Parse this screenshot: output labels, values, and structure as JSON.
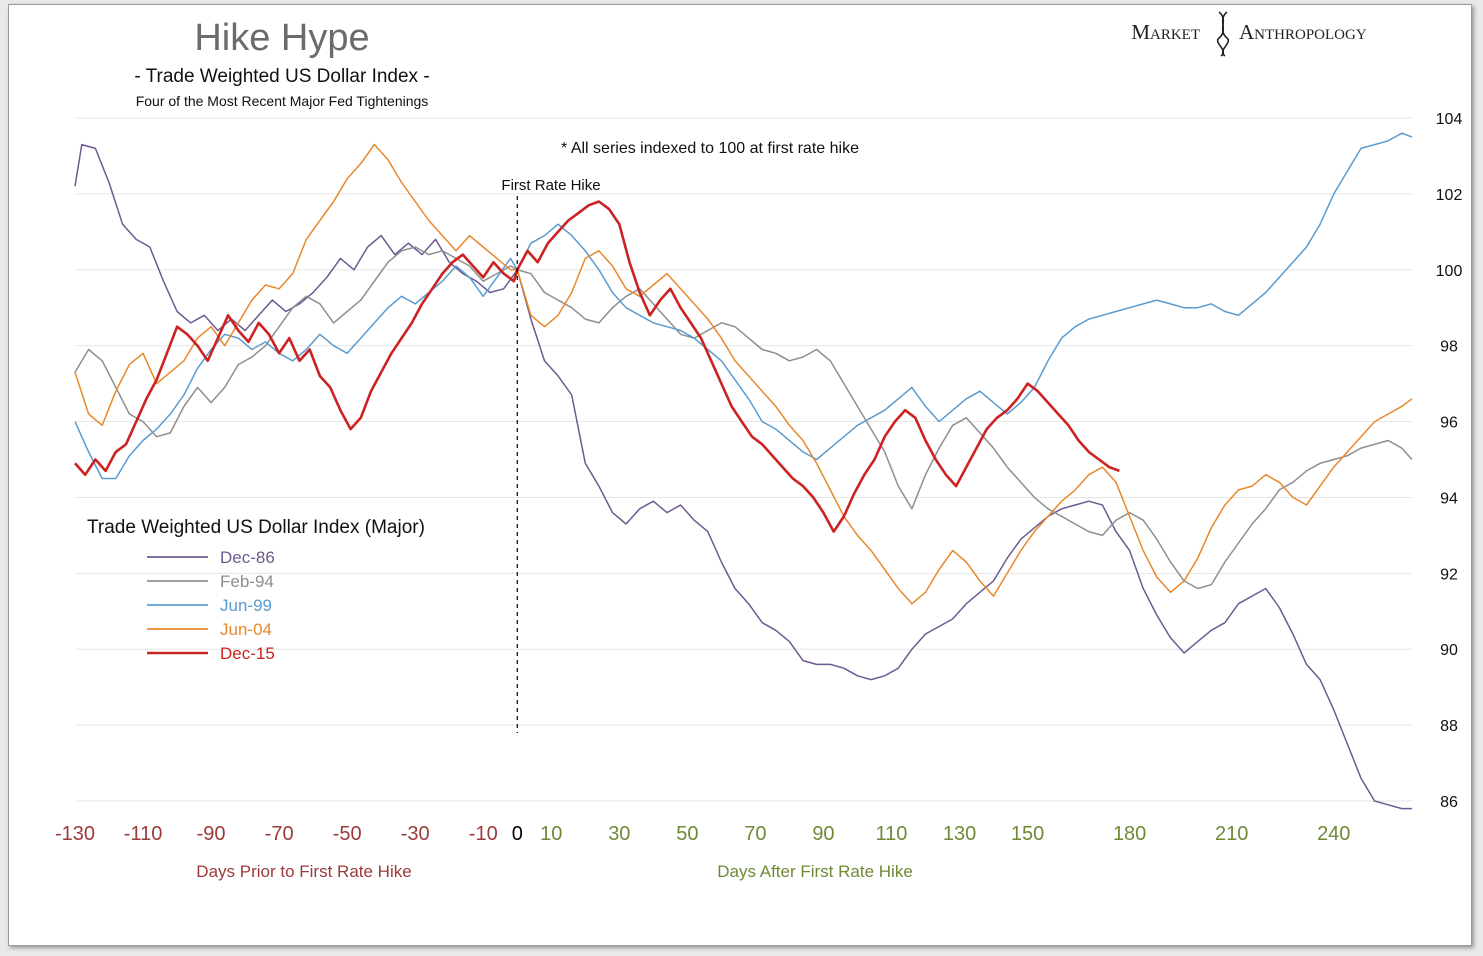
{
  "brand": {
    "left": "Market",
    "right": "Anthropology"
  },
  "chart_data": {
    "type": "line",
    "title": "Hike Hype",
    "subtitle": "- Trade Weighted US Dollar Index -",
    "subtitle2": "Four of the Most Recent Major Fed Tightenings",
    "note": "* All series indexed to 100 at first rate hike",
    "marker_label": "First Rate Hike",
    "legend_title": "Trade Weighted US Dollar Index (Major)",
    "xlabel_left": "Days Prior to First Rate Hike",
    "xlabel_right": "Days After First Rate Hike",
    "x_ticks": [
      "-130",
      "-110",
      "-90",
      "-70",
      "-50",
      "-30",
      "-10",
      "0",
      "10",
      "30",
      "50",
      "70",
      "90",
      "110",
      "130",
      "150",
      "180",
      "210",
      "240"
    ],
    "y_ticks": [
      86,
      88,
      90,
      92,
      94,
      96,
      98,
      100,
      102,
      104
    ],
    "xlim": [
      -130,
      263
    ],
    "ylim": [
      86,
      104
    ],
    "grid": true,
    "legend_position": "left-middle",
    "colors": {
      "prior": "#9b3a3a",
      "after": "#6f8a35",
      "zero": "#000000"
    },
    "series": [
      {
        "name": "Dec-86",
        "color": "#6e5a91",
        "x": [
          -130,
          -128,
          -124,
          -120,
          -116,
          -112,
          -108,
          -104,
          -100,
          -96,
          -92,
          -88,
          -84,
          -80,
          -76,
          -72,
          -68,
          -64,
          -60,
          -56,
          -52,
          -48,
          -44,
          -40,
          -36,
          -32,
          -28,
          -24,
          -20,
          -16,
          -12,
          -8,
          -4,
          0,
          4,
          8,
          12,
          16,
          20,
          24,
          28,
          32,
          36,
          40,
          44,
          48,
          52,
          56,
          60,
          64,
          68,
          72,
          76,
          80,
          84,
          88,
          92,
          96,
          100,
          104,
          108,
          112,
          116,
          120,
          124,
          128,
          132,
          136,
          140,
          144,
          148,
          152,
          156,
          160,
          164,
          168,
          172,
          176,
          180,
          184,
          188,
          192,
          196,
          200,
          204,
          208,
          212,
          216,
          220,
          224,
          228,
          232,
          236,
          240,
          244,
          248,
          252,
          256,
          260,
          263
        ],
        "y": [
          102.2,
          103.3,
          103.2,
          102.3,
          101.2,
          100.8,
          100.6,
          99.7,
          98.9,
          98.6,
          98.8,
          98.4,
          98.7,
          98.4,
          98.8,
          99.2,
          98.9,
          99.1,
          99.4,
          99.8,
          100.3,
          100.0,
          100.6,
          100.9,
          100.4,
          100.7,
          100.4,
          100.8,
          100.2,
          99.9,
          99.7,
          99.4,
          99.5,
          100.0,
          98.7,
          97.6,
          97.2,
          96.7,
          94.9,
          94.3,
          93.6,
          93.3,
          93.7,
          93.9,
          93.6,
          93.8,
          93.4,
          93.1,
          92.3,
          91.6,
          91.2,
          90.7,
          90.5,
          90.2,
          89.7,
          89.6,
          89.6,
          89.5,
          89.3,
          89.2,
          89.3,
          89.5,
          90.0,
          90.4,
          90.6,
          90.8,
          91.2,
          91.5,
          91.8,
          92.4,
          92.9,
          93.2,
          93.5,
          93.7,
          93.8,
          93.9,
          93.8,
          93.1,
          92.6,
          91.6,
          90.9,
          90.3,
          89.9,
          90.2,
          90.5,
          90.7,
          91.2,
          91.4,
          91.6,
          91.1,
          90.4,
          89.6,
          89.2,
          88.4,
          87.5,
          86.6,
          86.0,
          85.9,
          85.8,
          85.8
        ]
      },
      {
        "name": "Feb-94",
        "color": "#8e8e8e",
        "x": [
          -130,
          -126,
          -122,
          -118,
          -114,
          -110,
          -106,
          -102,
          -98,
          -94,
          -90,
          -86,
          -82,
          -78,
          -74,
          -70,
          -66,
          -62,
          -58,
          -54,
          -50,
          -46,
          -42,
          -38,
          -34,
          -30,
          -26,
          -22,
          -18,
          -14,
          -10,
          -6,
          -2,
          0,
          4,
          8,
          12,
          16,
          20,
          24,
          28,
          32,
          36,
          40,
          44,
          48,
          52,
          56,
          60,
          64,
          68,
          72,
          76,
          80,
          84,
          88,
          92,
          96,
          100,
          104,
          108,
          112,
          116,
          120,
          124,
          128,
          132,
          136,
          140,
          144,
          148,
          152,
          156,
          160,
          164,
          168,
          172,
          176,
          180,
          184,
          188,
          192,
          196,
          200,
          204,
          208,
          212,
          216,
          220,
          224,
          228,
          232,
          236,
          240,
          244,
          248,
          252,
          256,
          260,
          263
        ],
        "y": [
          97.3,
          97.9,
          97.6,
          96.9,
          96.2,
          96.0,
          95.6,
          95.7,
          96.4,
          96.9,
          96.5,
          96.9,
          97.5,
          97.7,
          98.0,
          98.5,
          99.0,
          99.3,
          99.1,
          98.6,
          98.9,
          99.2,
          99.7,
          100.2,
          100.5,
          100.6,
          100.4,
          100.5,
          100.3,
          100.1,
          99.7,
          99.9,
          100.1,
          100.0,
          99.9,
          99.4,
          99.2,
          99.0,
          98.7,
          98.6,
          99.0,
          99.3,
          99.5,
          99.1,
          98.7,
          98.3,
          98.2,
          98.4,
          98.6,
          98.5,
          98.2,
          97.9,
          97.8,
          97.6,
          97.7,
          97.9,
          97.6,
          97.0,
          96.4,
          95.8,
          95.2,
          94.3,
          93.7,
          94.6,
          95.3,
          95.9,
          96.1,
          95.7,
          95.3,
          94.8,
          94.4,
          94.0,
          93.7,
          93.5,
          93.3,
          93.1,
          93.0,
          93.4,
          93.6,
          93.4,
          92.9,
          92.3,
          91.8,
          91.6,
          91.7,
          92.3,
          92.8,
          93.3,
          93.7,
          94.2,
          94.4,
          94.7,
          94.9,
          95.0,
          95.1,
          95.3,
          95.4,
          95.5,
          95.3,
          95.0
        ]
      },
      {
        "name": "Jun-99",
        "color": "#5a9bd0",
        "x": [
          -130,
          -126,
          -122,
          -118,
          -114,
          -110,
          -106,
          -102,
          -98,
          -94,
          -90,
          -86,
          -82,
          -78,
          -74,
          -70,
          -66,
          -62,
          -58,
          -54,
          -50,
          -46,
          -42,
          -38,
          -34,
          -30,
          -26,
          -22,
          -18,
          -14,
          -10,
          -6,
          -2,
          0,
          4,
          8,
          12,
          16,
          20,
          24,
          28,
          32,
          36,
          40,
          44,
          48,
          52,
          56,
          60,
          64,
          68,
          72,
          76,
          80,
          84,
          88,
          92,
          96,
          100,
          104,
          108,
          112,
          116,
          120,
          124,
          128,
          132,
          136,
          140,
          144,
          148,
          152,
          156,
          160,
          164,
          168,
          172,
          176,
          180,
          184,
          188,
          192,
          196,
          200,
          204,
          208,
          212,
          216,
          220,
          224,
          228,
          232,
          236,
          240,
          244,
          248,
          252,
          256,
          260,
          263
        ],
        "y": [
          96.0,
          95.2,
          94.5,
          94.5,
          95.1,
          95.5,
          95.8,
          96.2,
          96.7,
          97.4,
          97.9,
          98.3,
          98.2,
          97.9,
          98.1,
          97.8,
          97.6,
          97.9,
          98.3,
          98.0,
          97.8,
          98.2,
          98.6,
          99.0,
          99.3,
          99.1,
          99.4,
          99.7,
          100.1,
          99.8,
          99.3,
          99.8,
          100.3,
          100.0,
          100.7,
          100.9,
          101.2,
          100.9,
          100.5,
          100.0,
          99.4,
          99.0,
          98.8,
          98.6,
          98.5,
          98.4,
          98.2,
          97.9,
          97.6,
          97.1,
          96.6,
          96.0,
          95.8,
          95.5,
          95.2,
          95.0,
          95.3,
          95.6,
          95.9,
          96.1,
          96.3,
          96.6,
          96.9,
          96.4,
          96.0,
          96.3,
          96.6,
          96.8,
          96.5,
          96.2,
          96.5,
          96.9,
          97.6,
          98.2,
          98.5,
          98.7,
          98.8,
          98.9,
          99.0,
          99.1,
          99.2,
          99.1,
          99.0,
          99.0,
          99.1,
          98.9,
          98.8,
          99.1,
          99.4,
          99.8,
          100.2,
          100.6,
          101.2,
          102.0,
          102.6,
          103.2,
          103.3,
          103.4,
          103.6,
          103.5
        ]
      },
      {
        "name": "Jun-04",
        "color": "#e8882b",
        "x": [
          -130,
          -126,
          -122,
          -118,
          -114,
          -110,
          -106,
          -102,
          -98,
          -94,
          -90,
          -86,
          -82,
          -78,
          -74,
          -70,
          -66,
          -62,
          -58,
          -54,
          -50,
          -46,
          -42,
          -38,
          -34,
          -30,
          -26,
          -22,
          -18,
          -14,
          -10,
          -6,
          -2,
          0,
          4,
          8,
          12,
          16,
          20,
          24,
          28,
          32,
          36,
          40,
          44,
          48,
          52,
          56,
          60,
          64,
          68,
          72,
          76,
          80,
          84,
          88,
          92,
          96,
          100,
          104,
          108,
          112,
          116,
          120,
          124,
          128,
          132,
          136,
          140,
          144,
          148,
          152,
          156,
          160,
          164,
          168,
          172,
          176,
          180,
          184,
          188,
          192,
          196,
          200,
          204,
          208,
          212,
          216,
          220,
          224,
          228,
          232,
          236,
          240,
          244,
          248,
          252,
          256,
          260,
          263
        ],
        "y": [
          97.3,
          96.2,
          95.9,
          96.8,
          97.5,
          97.8,
          97.0,
          97.3,
          97.6,
          98.2,
          98.5,
          98.0,
          98.6,
          99.2,
          99.6,
          99.5,
          99.9,
          100.8,
          101.3,
          101.8,
          102.4,
          102.8,
          103.3,
          102.9,
          102.3,
          101.8,
          101.3,
          100.9,
          100.5,
          100.9,
          100.6,
          100.3,
          100.0,
          100.0,
          98.8,
          98.5,
          98.8,
          99.4,
          100.3,
          100.5,
          100.1,
          99.5,
          99.3,
          99.6,
          99.9,
          99.5,
          99.1,
          98.7,
          98.2,
          97.6,
          97.2,
          96.8,
          96.4,
          95.9,
          95.5,
          94.9,
          94.2,
          93.5,
          93.0,
          92.6,
          92.1,
          91.6,
          91.2,
          91.5,
          92.1,
          92.6,
          92.3,
          91.8,
          91.4,
          92.0,
          92.6,
          93.1,
          93.5,
          93.9,
          94.2,
          94.6,
          94.8,
          94.4,
          93.5,
          92.6,
          91.9,
          91.5,
          91.8,
          92.4,
          93.2,
          93.8,
          94.2,
          94.3,
          94.6,
          94.4,
          94.0,
          93.8,
          94.3,
          94.8,
          95.2,
          95.6,
          96.0,
          96.2,
          96.4,
          96.6
        ]
      },
      {
        "name": "Dec-15",
        "color": "#cc2222",
        "x": [
          -130,
          -127,
          -124,
          -121,
          -118,
          -115,
          -112,
          -109,
          -106,
          -103,
          -100,
          -97,
          -94,
          -91,
          -88,
          -85,
          -82,
          -79,
          -76,
          -73,
          -70,
          -67,
          -64,
          -61,
          -58,
          -55,
          -52,
          -49,
          -46,
          -43,
          -40,
          -37,
          -34,
          -31,
          -28,
          -25,
          -22,
          -19,
          -16,
          -13,
          -10,
          -7,
          -4,
          -1,
          0,
          3,
          6,
          9,
          12,
          15,
          18,
          21,
          24,
          27,
          30,
          33,
          36,
          39,
          42,
          45,
          48,
          51,
          54,
          57,
          60,
          63,
          66,
          69,
          72,
          75,
          78,
          81,
          84,
          87,
          90,
          93,
          96,
          99,
          102,
          105,
          108,
          111,
          114,
          117,
          120,
          123,
          126,
          129,
          132,
          135,
          138,
          141,
          144,
          147,
          150,
          153,
          156,
          159,
          162,
          165,
          168,
          171,
          174,
          177
        ],
        "y": [
          94.9,
          94.6,
          95.0,
          94.7,
          95.2,
          95.4,
          96.0,
          96.6,
          97.1,
          97.8,
          98.5,
          98.3,
          98.0,
          97.6,
          98.2,
          98.8,
          98.4,
          98.1,
          98.6,
          98.3,
          97.8,
          98.2,
          97.6,
          97.9,
          97.2,
          96.9,
          96.3,
          95.8,
          96.1,
          96.8,
          97.3,
          97.8,
          98.2,
          98.6,
          99.1,
          99.5,
          99.9,
          100.2,
          100.4,
          100.1,
          99.8,
          100.2,
          99.9,
          99.7,
          100.0,
          100.5,
          100.2,
          100.7,
          101.0,
          101.3,
          101.5,
          101.7,
          101.8,
          101.6,
          101.2,
          100.2,
          99.4,
          98.8,
          99.2,
          99.5,
          99.0,
          98.6,
          98.2,
          97.6,
          97.0,
          96.4,
          96.0,
          95.6,
          95.4,
          95.1,
          94.8,
          94.5,
          94.3,
          94.0,
          93.6,
          93.1,
          93.5,
          94.1,
          94.6,
          95.0,
          95.6,
          96.0,
          96.3,
          96.1,
          95.5,
          95.0,
          94.6,
          94.3,
          94.8,
          95.3,
          95.8,
          96.1,
          96.3,
          96.6,
          97.0,
          96.8,
          96.5,
          96.2,
          95.9,
          95.5,
          95.2,
          95.0,
          94.8,
          94.7
        ]
      }
    ]
  }
}
